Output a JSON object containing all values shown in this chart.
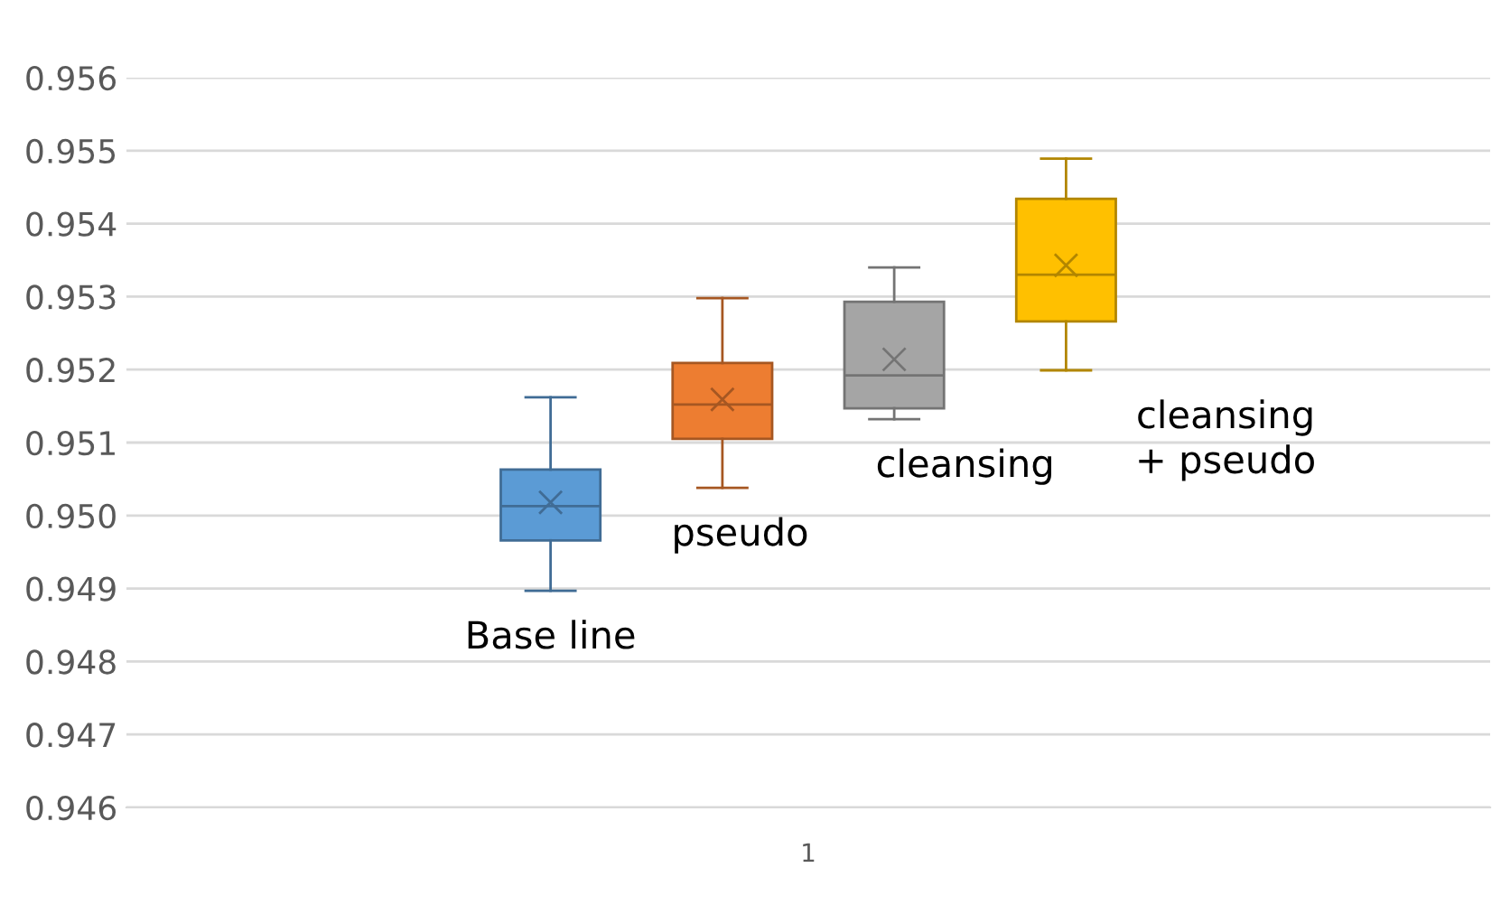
{
  "chart_data": {
    "type": "box",
    "categories": [
      "1"
    ],
    "series": [
      {
        "name": "Base line",
        "color": "#5b9bd5",
        "boxes": [
          {
            "low": 0.94897,
            "q1": 0.94966,
            "median": 0.95013,
            "q3": 0.95063,
            "high": 0.95162,
            "mean": 0.95018
          }
        ]
      },
      {
        "name": "pseudo",
        "color": "#ed7d31",
        "boxes": [
          {
            "low": 0.95038,
            "q1": 0.95105,
            "median": 0.95152,
            "q3": 0.95209,
            "high": 0.95298,
            "mean": 0.95159
          }
        ]
      },
      {
        "name": "cleansing",
        "color": "#a5a5a5",
        "boxes": [
          {
            "low": 0.95132,
            "q1": 0.95147,
            "median": 0.95192,
            "q3": 0.95293,
            "high": 0.9534,
            "mean": 0.95214
          }
        ]
      },
      {
        "name": "cleansing\n+ pseudo",
        "color": "#ffc000",
        "boxes": [
          {
            "low": 0.95199,
            "q1": 0.95266,
            "median": 0.9533,
            "q3": 0.95434,
            "high": 0.95489,
            "mean": 0.95343
          }
        ]
      }
    ],
    "ylim": [
      0.946,
      0.956
    ],
    "yticks": [
      0.946,
      0.947,
      0.948,
      0.949,
      {
        "value": 0.95,
        "label": "0.950"
      },
      0.951,
      0.952,
      0.953,
      0.954,
      0.955,
      0.956
    ],
    "grid": "y",
    "legend": false,
    "marker": "cross"
  }
}
